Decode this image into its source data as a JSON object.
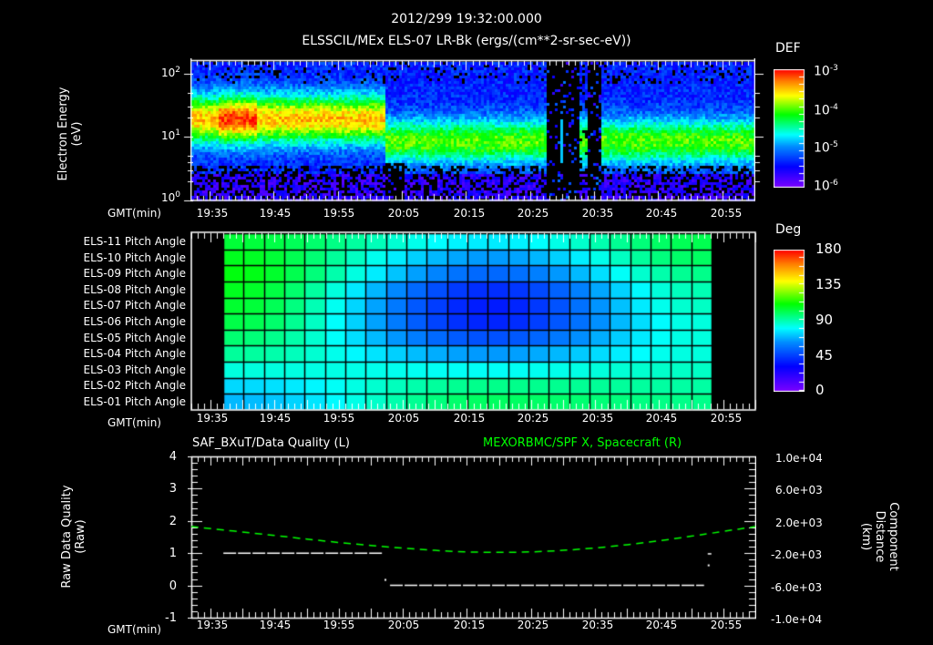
{
  "header": {
    "datetime": "2012/299 19:32:00.000",
    "subtitle": "ELSSCIL/MEx ELS-07 LR-Bk  (ergs/(cm**2-sr-sec-eV))"
  },
  "x_axis": {
    "label": "GMT(min)",
    "ticks": [
      "19:35",
      "19:45",
      "19:55",
      "20:05",
      "20:15",
      "20:25",
      "20:35",
      "20:45",
      "20:55"
    ],
    "tick_x": [
      233,
      302,
      372,
      443,
      515,
      585,
      656,
      726,
      797
    ]
  },
  "panel1": {
    "ylabel_line1": "Electron Energy",
    "ylabel_line2": "(eV)",
    "yticks": [
      {
        "base": "10",
        "exp": "2"
      },
      {
        "base": "10",
        "exp": "1"
      },
      {
        "base": "10",
        "exp": "0"
      }
    ],
    "colorbar": {
      "title": "DEF",
      "ticks": [
        {
          "base": "10",
          "exp": "-3"
        },
        {
          "base": "10",
          "exp": "-4"
        },
        {
          "base": "10",
          "exp": "-5"
        },
        {
          "base": "10",
          "exp": "-6"
        }
      ]
    }
  },
  "panel2": {
    "row_labels": [
      "ELS-11 Pitch Angle",
      "ELS-10 Pitch Angle",
      "ELS-09 Pitch Angle",
      "ELS-08 Pitch Angle",
      "ELS-07 Pitch Angle",
      "ELS-06 Pitch Angle",
      "ELS-05 Pitch Angle",
      "ELS-04 Pitch Angle",
      "ELS-03 Pitch Angle",
      "ELS-02 Pitch Angle",
      "ELS-01 Pitch Angle"
    ],
    "colorbar": {
      "title": "Deg",
      "ticks": [
        "180",
        "135",
        "90",
        "45",
        "0"
      ]
    }
  },
  "panel3": {
    "left_title": "SAF_BXuT/Data Quality (L)",
    "right_title": "MEXORBMC/SPF X, Spacecraft (R)",
    "ylabel_left_line1": "Raw Data Quality",
    "ylabel_left_line2": "(Raw)",
    "ylabel_right_line1": "Component Distance",
    "ylabel_right_line2": "(km)",
    "yticks_left": [
      "4",
      "3",
      "2",
      "1",
      "0",
      "-1"
    ],
    "yticks_right": [
      "1.0e+04",
      "6.0e+03",
      "2.0e+03",
      "-2.0e+03",
      "-6.0e+03",
      "-1.0e+04"
    ],
    "right_series_color": "#00ff00"
  },
  "chart_data": [
    {
      "type": "heatmap",
      "title": "ELSSCIL/MEx ELS-07 LR-Bk (ergs/(cm**2-sr-sec-eV))",
      "xlabel": "GMT(min)",
      "ylabel": "Electron Energy (eV)",
      "x_range": [
        "19:32",
        "21:00"
      ],
      "y_scale": "log",
      "ylim": [
        1,
        150
      ],
      "colorbar": {
        "label": "DEF",
        "scale": "log",
        "range": [
          1e-06,
          0.001
        ]
      },
      "features": [
        {
          "time": "19:35-20:02",
          "energy_eV": [
            8,
            60
          ],
          "level": 0.0001,
          "note": "green/yellow band, brightest near 19:38-19:40"
        },
        {
          "time": "20:02-20:27",
          "energy_eV": [
            5,
            20
          ],
          "level": 2e-05,
          "note": "cyan band"
        },
        {
          "time": "20:27-20:34",
          "note": "data gaps (black stripes)"
        },
        {
          "time": "20:34-20:59",
          "energy_eV": [
            4,
            20
          ],
          "level": 2e-05,
          "note": "cyan band"
        }
      ]
    },
    {
      "type": "heatmap",
      "title": "ELS pitch angles",
      "xlabel": "GMT(min)",
      "rows": [
        "ELS-11",
        "ELS-10",
        "ELS-09",
        "ELS-08",
        "ELS-07",
        "ELS-06",
        "ELS-05",
        "ELS-04",
        "ELS-03",
        "ELS-02",
        "ELS-01"
      ],
      "x_range": [
        "19:32",
        "21:00"
      ],
      "data_time_range": [
        "19:37",
        "20:53"
      ],
      "colorbar": {
        "label": "Deg",
        "range": [
          0,
          180
        ],
        "ticks": [
          0,
          45,
          90,
          135,
          180
        ]
      },
      "cols": 24,
      "start_values_deg": [
        105,
        108,
        110,
        108,
        106,
        103,
        98,
        93,
        85,
        75,
        70
      ],
      "mid_values_deg": [
        78,
        65,
        55,
        42,
        38,
        40,
        50,
        65,
        82,
        95,
        100
      ],
      "end_values_deg": [
        102,
        100,
        95,
        90,
        88,
        85,
        85,
        85,
        88,
        92,
        95
      ]
    },
    {
      "type": "line",
      "title": "SAF_BXuT/Data Quality (L) ; MEXORBMC/SPF X, Spacecraft (R)",
      "xlabel": "GMT(min)",
      "series": [
        {
          "name": "Data Quality (L)",
          "axis": "left",
          "color": "#ffffff",
          "style": "dashed",
          "points": [
            [
              "19:37",
              1
            ],
            [
              "20:02",
              1
            ],
            [
              "20:03",
              0
            ],
            [
              "20:52",
              0
            ],
            [
              "20:53",
              1
            ]
          ]
        },
        {
          "name": "SPF X Spacecraft (R)",
          "axis": "right",
          "color": "#00ff00",
          "style": "dashed",
          "unit": "km",
          "points": [
            [
              "19:32",
              1300
            ],
            [
              "19:45",
              200
            ],
            [
              "19:55",
              -700
            ],
            [
              "20:05",
              -1400
            ],
            [
              "20:15",
              -1900
            ],
            [
              "20:25",
              -1900
            ],
            [
              "20:35",
              -1400
            ],
            [
              "20:45",
              -500
            ],
            [
              "20:55",
              700
            ],
            [
              "21:00",
              1300
            ]
          ]
        }
      ],
      "ylim_left": [
        -1,
        4
      ],
      "ylim_right": [
        -10000,
        10000
      ]
    }
  ]
}
